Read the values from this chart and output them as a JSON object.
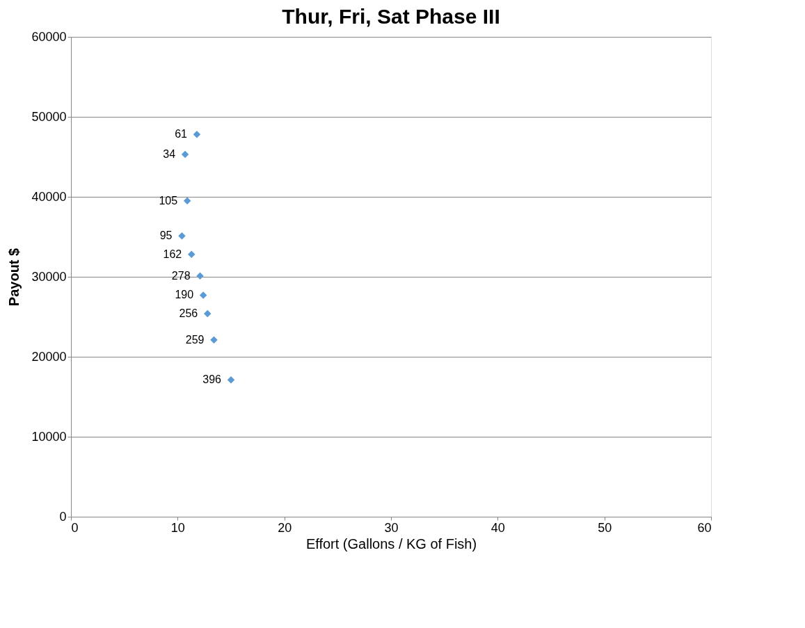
{
  "chart_data": {
    "type": "scatter",
    "title": "Thur, Fri, Sat Phase III",
    "xlabel": "Effort (Gallons / KG of Fish)",
    "ylabel": "Payout $",
    "x": [
      11.8,
      10.7,
      10.9,
      10.4,
      11.3,
      12.1,
      12.4,
      12.8,
      13.4,
      15.0
    ],
    "series": [
      {
        "color": "#5b9bd5",
        "values": [
          47800,
          45300,
          39500,
          35100,
          32800,
          30100,
          27700,
          25400,
          22100,
          17100
        ]
      }
    ],
    "annotations": [
      {
        "text": "61",
        "x": 11.8,
        "y": 47800
      },
      {
        "text": "34",
        "x": 10.7,
        "y": 45300
      },
      {
        "text": "105",
        "x": 10.9,
        "y": 39500
      },
      {
        "text": "95",
        "x": 10.4,
        "y": 35100
      },
      {
        "text": "162",
        "x": 11.3,
        "y": 32800
      },
      {
        "text": "278",
        "x": 12.1,
        "y": 30100
      },
      {
        "text": "190",
        "x": 12.4,
        "y": 27700
      },
      {
        "text": "256",
        "x": 12.8,
        "y": 25400
      },
      {
        "text": "259",
        "x": 13.4,
        "y": 22100
      },
      {
        "text": "396",
        "x": 15.0,
        "y": 17100
      }
    ],
    "xlim": [
      0,
      60
    ],
    "xticks": [
      0,
      10,
      20,
      30,
      40,
      50,
      60
    ],
    "ylim": [
      0,
      60000
    ],
    "yticks": [
      0,
      10000,
      20000,
      30000,
      40000,
      50000,
      60000
    ],
    "grid": "y",
    "marker": "diamond"
  }
}
